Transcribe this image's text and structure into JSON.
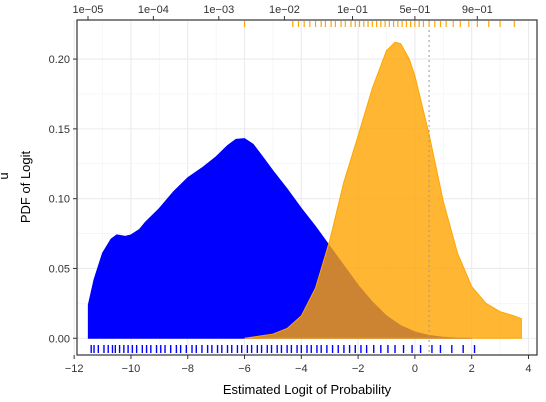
{
  "chart_data": {
    "type": "area",
    "title": "",
    "xlabel": "Estimated Logit of Probability",
    "ylabel": "PDF of Logit",
    "ylabel_fragment": "u",
    "xlim": [
      -11.9,
      4.3
    ],
    "ylim": [
      -0.012,
      0.228
    ],
    "x_ticks": [
      -12,
      -10,
      -8,
      -6,
      -4,
      -2,
      0,
      2,
      4
    ],
    "x_tick_labels": [
      "−12",
      "−10",
      "−8",
      "−6",
      "−4",
      "−2",
      "0",
      "2",
      "4"
    ],
    "y_ticks": [
      0.0,
      0.05,
      0.1,
      0.15,
      0.2
    ],
    "y_tick_labels": [
      "0.00",
      "0.05",
      "0.10",
      "0.15",
      "0.20"
    ],
    "top_axis": {
      "logits": [
        -11.513,
        -9.21,
        -6.907,
        -4.595,
        -2.197,
        0,
        2.197
      ],
      "labels": [
        "1e−05",
        "1e−04",
        "1e−03",
        "1e−02",
        "1e−01",
        "5e−01",
        "9e−01"
      ]
    },
    "reference_line_x": 0.5,
    "grid": true,
    "series": [
      {
        "color": "#0000ff",
        "opacity": 1.0,
        "x": [
          -11.5,
          -11.3,
          -11.0,
          -10.7,
          -10.5,
          -10.2,
          -10.0,
          -9.7,
          -9.5,
          -9.0,
          -8.5,
          -8.0,
          -7.5,
          -7.0,
          -6.6,
          -6.3,
          -6.0,
          -5.7,
          -5.4,
          -5.0,
          -4.5,
          -4.0,
          -3.5,
          -3.0,
          -2.5,
          -2.0,
          -1.5,
          -1.0,
          -0.5,
          0.0,
          0.5,
          1.0,
          1.5,
          2.0
        ],
        "y": [
          0.024,
          0.042,
          0.061,
          0.071,
          0.074,
          0.073,
          0.074,
          0.078,
          0.083,
          0.093,
          0.105,
          0.115,
          0.122,
          0.13,
          0.138,
          0.1425,
          0.143,
          0.139,
          0.131,
          0.12,
          0.107,
          0.093,
          0.08,
          0.066,
          0.052,
          0.038,
          0.026,
          0.016,
          0.009,
          0.0045,
          0.002,
          0.0007,
          0.0002,
          0.0
        ]
      },
      {
        "color": "#ffa500",
        "opacity": 0.8,
        "x": [
          -6.0,
          -5.0,
          -4.5,
          -4.0,
          -3.5,
          -3.0,
          -2.5,
          -2.0,
          -1.5,
          -1.0,
          -0.7,
          -0.5,
          -0.2,
          0.0,
          0.5,
          1.0,
          1.5,
          2.0,
          2.5,
          3.0,
          3.5,
          3.75
        ],
        "y": [
          0.0,
          0.003,
          0.007,
          0.016,
          0.036,
          0.07,
          0.112,
          0.145,
          0.179,
          0.206,
          0.212,
          0.211,
          0.2,
          0.188,
          0.146,
          0.098,
          0.061,
          0.037,
          0.025,
          0.019,
          0.016,
          0.014
        ]
      }
    ],
    "rug": {
      "bottom": {
        "color": "#0000ff",
        "x": [
          -11.4,
          -11.3,
          -11.15,
          -10.95,
          -10.8,
          -10.65,
          -10.55,
          -10.4,
          -10.25,
          -10.1,
          -9.95,
          -9.8,
          -9.6,
          -9.45,
          -9.3,
          -9.1,
          -8.95,
          -8.8,
          -8.6,
          -8.4,
          -8.25,
          -8.05,
          -7.85,
          -7.7,
          -7.5,
          -7.3,
          -7.15,
          -6.95,
          -6.8,
          -6.6,
          -6.45,
          -6.25,
          -6.1,
          -5.9,
          -5.75,
          -5.55,
          -5.4,
          -5.2,
          -5.05,
          -4.85,
          -4.7,
          -4.5,
          -4.35,
          -4.15,
          -4.0,
          -3.8,
          -3.65,
          -3.45,
          -3.3,
          -3.1,
          -2.9,
          -2.7,
          -2.5,
          -2.3,
          -2.1,
          -1.9,
          -1.7,
          -1.45,
          -1.2,
          -0.95,
          -0.7,
          -0.4,
          -0.1,
          0.2,
          0.6,
          0.9,
          1.3,
          1.7,
          2.1
        ]
      },
      "top": {
        "color": "#ffa500",
        "x": [
          -6.0,
          -4.3,
          -4.1,
          -3.9,
          -3.7,
          -3.5,
          -3.3,
          -3.15,
          -2.95,
          -2.8,
          -2.6,
          -2.45,
          -2.25,
          -2.1,
          -1.95,
          -1.8,
          -1.65,
          -1.5,
          -1.35,
          -1.2,
          -1.05,
          -0.9,
          -0.75,
          -0.6,
          -0.45,
          -0.3,
          -0.15,
          0.0,
          0.15,
          0.3,
          0.5,
          0.7,
          0.9,
          1.1,
          1.35,
          1.6,
          1.9,
          2.2,
          2.6,
          3.0,
          3.5
        ]
      }
    }
  }
}
